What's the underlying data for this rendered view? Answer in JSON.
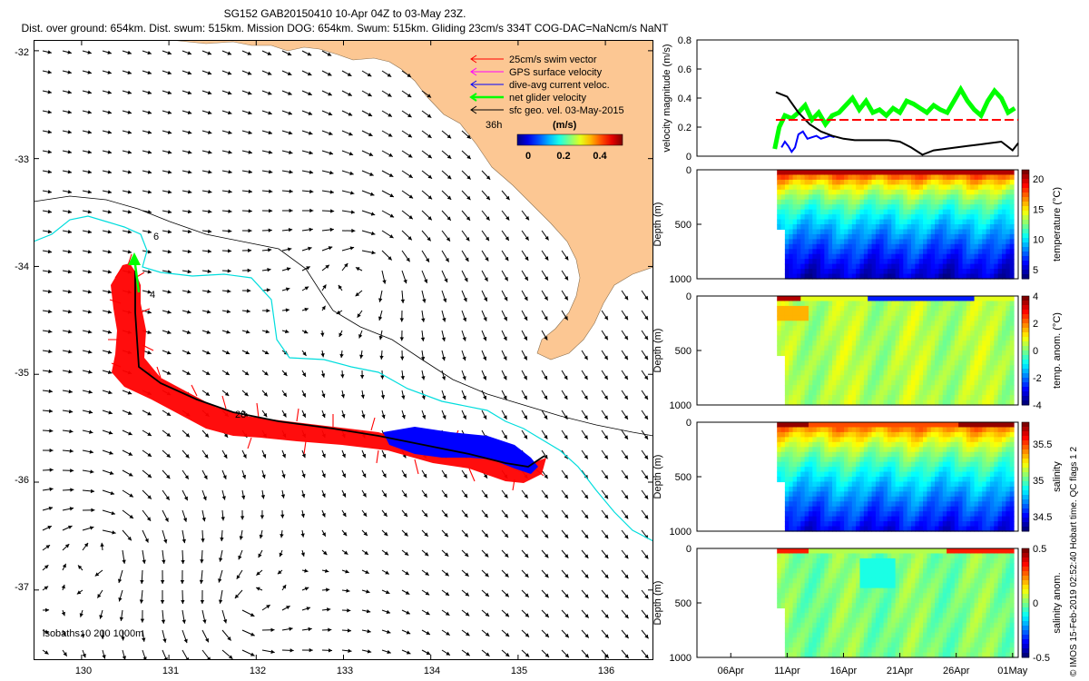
{
  "header": {
    "line1": "SG152 GAB20150410 10-Apr 04Z to 03-May 23Z.",
    "line2": "Dist. over ground: 654km. Dist. swum: 515km. Mission DOG: 654km. Swum: 515km. Gliding 23cm/s 334T COG-DAC=NaNcm/s NaNT"
  },
  "map": {
    "lon_ticks": [
      "130",
      "131",
      "132",
      "133",
      "134",
      "135",
      "136"
    ],
    "lat_ticks": [
      "-32",
      "-33",
      "-34",
      "-35",
      "-36",
      "-37"
    ],
    "lon_range": [
      129.45,
      136.55
    ],
    "lat_range": [
      -37.65,
      -31.9
    ],
    "legend": {
      "items": [
        {
          "label": "25cm/s swim vector",
          "color": "#ff0000"
        },
        {
          "label": "GPS surface velocity",
          "color": "#ff00ff"
        },
        {
          "label": "dive-avg current veloc.",
          "color": "#0000ff"
        },
        {
          "label": "net glider velocity",
          "color": "#00ff00"
        },
        {
          "label": "sfc geo. vel. 03-May-2015",
          "color": "#000000"
        }
      ],
      "age_label": "36h",
      "colorbar_title": "(m/s)",
      "colorbar_ticks": [
        "0",
        "0.2",
        "0.4"
      ]
    },
    "isobaths_label": "isobaths: 0   200   1000m",
    "track_labels": [
      "6",
      "4",
      "28"
    ],
    "colors": {
      "land": "#fcc793",
      "sea": "#ffffff",
      "swim": "#ff0000",
      "current": "#0000ff",
      "isobath": "#00dddd",
      "net": "#00ff00"
    }
  },
  "chart_data": [
    {
      "type": "line",
      "title": "velocity magnitude",
      "ylabel": "velocity magnitude (m/s)",
      "ylim": [
        0,
        0.8
      ],
      "y_ticks": [
        "0",
        "0.2",
        "0.4",
        "0.6",
        "0.8"
      ],
      "x_ticks": [
        "06Apr",
        "11Apr",
        "16Apr",
        "21Apr",
        "26Apr",
        "01May"
      ],
      "x_day_range": [
        2,
        30.5
      ],
      "series": [
        {
          "name": "net glider velocity",
          "color": "#00ff00",
          "x": [
            8.9,
            9.3,
            9.8,
            10.4,
            11.0,
            11.6,
            12.2,
            12.8,
            13.4,
            14.0,
            14.6,
            15.2,
            15.8,
            16.4,
            17.0,
            17.6,
            18.2,
            18.8,
            19.4,
            20.0,
            20.6,
            21.2,
            21.8,
            22.4,
            23.0,
            23.6,
            24.2,
            24.8,
            25.4,
            26.0,
            26.6,
            27.2,
            27.8,
            28.4,
            29.0,
            29.6,
            30.2
          ],
          "y": [
            0.05,
            0.2,
            0.28,
            0.26,
            0.3,
            0.35,
            0.25,
            0.3,
            0.22,
            0.28,
            0.3,
            0.35,
            0.4,
            0.32,
            0.38,
            0.3,
            0.32,
            0.28,
            0.33,
            0.3,
            0.38,
            0.36,
            0.33,
            0.3,
            0.35,
            0.32,
            0.3,
            0.38,
            0.46,
            0.38,
            0.32,
            0.28,
            0.38,
            0.45,
            0.4,
            0.3,
            0.33
          ]
        },
        {
          "name": "dive-avg current",
          "color": "#0000ff",
          "x": [
            9.5,
            9.8,
            10.1,
            10.4,
            10.7,
            11.0,
            11.4,
            11.8,
            12.2,
            12.6,
            13.0,
            13.4,
            13.8,
            14.2
          ],
          "y": [
            0.06,
            0.1,
            0.07,
            0.03,
            0.06,
            0.15,
            0.17,
            0.12,
            0.13,
            0.14,
            0.12,
            0.13,
            0.14,
            0.13
          ]
        },
        {
          "name": "sfc geo. vel.",
          "color": "#000000",
          "x": [
            9.0,
            10.0,
            11.0,
            12.0,
            13.0,
            14.0,
            15.0,
            16.0,
            17.0,
            18.0,
            19.0,
            20.0,
            21.0,
            22.0,
            23.0,
            24.0,
            25.0,
            26.0,
            27.0,
            28.0,
            29.0,
            30.0,
            30.5
          ],
          "y": [
            0.44,
            0.41,
            0.3,
            0.22,
            0.17,
            0.14,
            0.12,
            0.11,
            0.11,
            0.11,
            0.11,
            0.1,
            0.06,
            0.01,
            0.04,
            0.05,
            0.06,
            0.07,
            0.08,
            0.09,
            0.1,
            0.04,
            0.09
          ]
        },
        {
          "name": "reference 25 cm/s",
          "color": "#ff0000",
          "x": [
            9.0,
            30.5
          ],
          "y": [
            0.25,
            0.25
          ]
        }
      ]
    },
    {
      "type": "heatmap",
      "variable": "temperature",
      "cbar_label": "temperature (°C)",
      "ylabel": "Depth (m)",
      "ylim": [
        1000,
        0
      ],
      "y_ticks": [
        "0",
        "500",
        "1000"
      ],
      "cbar_ticks": [
        "5",
        "10",
        "15",
        "20"
      ],
      "clim": [
        3.5,
        21.5
      ],
      "palette": "jet"
    },
    {
      "type": "heatmap",
      "variable": "temp. anom.",
      "cbar_label": "temp. anom. (°C)",
      "ylabel": "Depth (m)",
      "ylim": [
        1000,
        0
      ],
      "y_ticks": [
        "0",
        "500",
        "1000"
      ],
      "cbar_ticks": [
        "-4",
        "-2",
        "0",
        "2",
        "4"
      ],
      "clim": [
        -4,
        4
      ],
      "palette": "jet"
    },
    {
      "type": "heatmap",
      "variable": "salinity",
      "cbar_label": "salinity",
      "ylabel": "Depth (m)",
      "ylim": [
        1000,
        0
      ],
      "y_ticks": [
        "0",
        "500",
        "1000"
      ],
      "cbar_ticks": [
        "34.5",
        "35",
        "35.5"
      ],
      "clim": [
        34.3,
        35.8
      ],
      "palette": "jet"
    },
    {
      "type": "heatmap",
      "variable": "salinity anom.",
      "cbar_label": "salinity anom.",
      "ylabel": "Depth (m)",
      "ylim": [
        1000,
        0
      ],
      "y_ticks": [
        "0",
        "500",
        "1000"
      ],
      "cbar_ticks": [
        "0.5",
        "0",
        "-0.5"
      ],
      "clim": [
        -0.5,
        0.5
      ],
      "palette": "jet"
    }
  ],
  "footer": "© IMOS 15-Feb-2019 02:52:40 Hobart time. QC flags 1  2"
}
